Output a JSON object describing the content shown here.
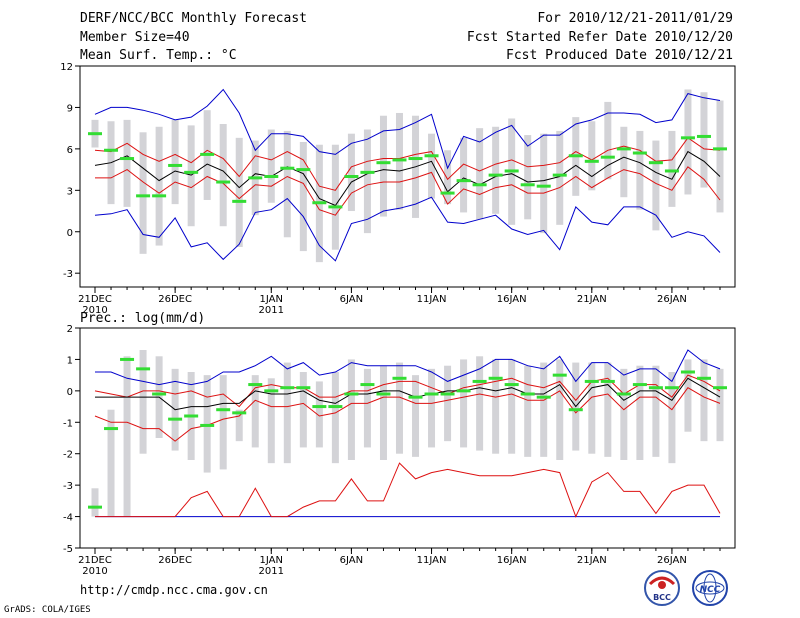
{
  "header": {
    "title": "DERF/NCC/BCC Monthly Forecast",
    "member_size": "Member Size=40",
    "variable": "Mean Surf. Temp.: °C",
    "period": "For 2010/12/21-2011/01/29",
    "refer_date": "Fcst Started Refer Date 2010/12/20",
    "produced_date": "Fcst Produced Date 2010/12/21"
  },
  "footer": {
    "url": "http://cmdp.ncc.cma.gov.cn",
    "grads": "GrADS: COLA/IGES",
    "logo_bcc": "BCC",
    "logo_ncc": "NCC"
  },
  "colors": {
    "spread_bar": "#d3d3d7",
    "max_min": "#0000cc",
    "percentile": "#dd1111",
    "mean": "#000000",
    "observed": "#33dd33",
    "frame": "#000000"
  },
  "chart_data": [
    {
      "type": "line",
      "title": "Mean Surf. Temp.: °C",
      "ylim": [
        -4,
        12
      ],
      "yticks": [
        -3,
        0,
        3,
        6,
        9,
        12
      ],
      "x_ticks": [
        {
          "day": 1,
          "label": "21DEC",
          "sub": "2010"
        },
        {
          "day": 6,
          "label": "26DEC",
          "sub": ""
        },
        {
          "day": 12,
          "label": "1JAN",
          "sub": "2011"
        },
        {
          "day": 17,
          "label": "6JAN",
          "sub": ""
        },
        {
          "day": 22,
          "label": "11JAN",
          "sub": ""
        },
        {
          "day": 27,
          "label": "16JAN",
          "sub": ""
        },
        {
          "day": 32,
          "label": "21JAN",
          "sub": ""
        },
        {
          "day": 37,
          "label": "26JAN",
          "sub": ""
        }
      ],
      "days": 40,
      "series": [
        {
          "name": "bar_top",
          "values": [
            8.1,
            8.0,
            8.1,
            7.2,
            7.6,
            8.1,
            7.7,
            8.8,
            7.8,
            6.8,
            6.6,
            7.4,
            7.3,
            6.5,
            6.3,
            6.3,
            7.1,
            7.4,
            8.4,
            8.6,
            8.4,
            7.1,
            5.9,
            6.8,
            7.5,
            7.6,
            8.2,
            7.0,
            7.1,
            7.3,
            8.3,
            8.0,
            9.4,
            7.6,
            7.3,
            6.6,
            7.3,
            10.3,
            10.1,
            9.5
          ]
        },
        {
          "name": "bar_bottom",
          "values": [
            6.1,
            2.0,
            1.8,
            -1.6,
            -1.0,
            2.0,
            0.4,
            2.3,
            0.4,
            -1.1,
            1.2,
            2.1,
            -0.4,
            -1.4,
            -2.2,
            -1.3,
            1.5,
            -0.1,
            1.1,
            1.6,
            1.0,
            2.4,
            2.0,
            1.4,
            0.9,
            1.3,
            0.5,
            0.9,
            -0.1,
            0.5,
            2.6,
            3.0,
            3.8,
            2.5,
            1.6,
            0.1,
            1.8,
            2.7,
            3.2,
            1.4
          ]
        },
        {
          "name": "max",
          "values": [
            8.5,
            9.0,
            9.0,
            8.8,
            8.5,
            8.1,
            8.3,
            9.1,
            10.3,
            8.6,
            5.9,
            7.1,
            7.1,
            6.9,
            5.8,
            5.6,
            6.4,
            6.7,
            7.3,
            7.4,
            7.9,
            8.5,
            4.6,
            6.9,
            6.5,
            7.2,
            7.7,
            6.2,
            7.0,
            7.0,
            7.8,
            8.1,
            8.6,
            8.6,
            8.5,
            7.9,
            8.1,
            10.0,
            9.7,
            9.5
          ]
        },
        {
          "name": "p90",
          "values": [
            5.9,
            5.8,
            6.4,
            5.6,
            5.1,
            5.6,
            5.0,
            5.9,
            5.3,
            4.0,
            5.5,
            5.2,
            5.8,
            5.2,
            3.3,
            3.0,
            4.7,
            5.1,
            5.3,
            5.3,
            5.6,
            5.8,
            3.8,
            4.9,
            4.4,
            4.9,
            5.2,
            4.7,
            4.8,
            5.0,
            5.8,
            5.2,
            5.9,
            6.2,
            5.9,
            5.1,
            5.2,
            6.8,
            6.0,
            5.9
          ]
        },
        {
          "name": "mean",
          "values": [
            4.8,
            5.0,
            5.5,
            4.6,
            3.7,
            4.4,
            4.1,
            4.9,
            4.4,
            3.2,
            4.2,
            4.0,
            4.7,
            4.2,
            2.4,
            1.9,
            3.6,
            4.2,
            4.5,
            4.4,
            4.7,
            5.1,
            2.9,
            3.9,
            3.4,
            4.0,
            4.2,
            3.6,
            3.7,
            4.0,
            4.8,
            4.0,
            4.8,
            5.4,
            5.0,
            4.3,
            3.8,
            5.8,
            5.1,
            4.0
          ]
        },
        {
          "name": "p10",
          "values": [
            3.9,
            3.9,
            4.5,
            3.6,
            2.8,
            3.6,
            3.2,
            4.0,
            3.5,
            2.4,
            3.4,
            3.3,
            4.0,
            3.5,
            1.6,
            1.2,
            2.8,
            3.4,
            3.6,
            3.6,
            3.9,
            4.3,
            2.0,
            3.1,
            2.7,
            3.2,
            3.4,
            2.8,
            2.8,
            3.2,
            4.0,
            3.2,
            3.9,
            4.5,
            4.2,
            3.5,
            3.0,
            4.7,
            3.8,
            2.3
          ]
        },
        {
          "name": "min",
          "values": [
            1.2,
            1.3,
            1.6,
            -0.2,
            -0.4,
            1.0,
            -1.1,
            -0.8,
            -2.0,
            -0.9,
            1.4,
            1.6,
            2.4,
            1.1,
            -1.0,
            -2.1,
            0.6,
            0.9,
            1.5,
            1.7,
            2.0,
            2.5,
            0.7,
            0.6,
            0.9,
            1.2,
            0.2,
            -0.2,
            0.1,
            -1.3,
            1.8,
            0.7,
            0.5,
            1.8,
            1.8,
            1.2,
            -0.4,
            0.0,
            -0.3,
            -1.5
          ]
        },
        {
          "name": "observed",
          "values": [
            7.1,
            5.9,
            5.3,
            2.6,
            2.6,
            4.8,
            4.3,
            5.6,
            3.6,
            2.2,
            3.9,
            4.0,
            4.6,
            4.5,
            2.1,
            1.8,
            4.0,
            4.3,
            5.0,
            5.2,
            5.3,
            5.5,
            2.8,
            3.7,
            3.4,
            4.1,
            4.4,
            3.4,
            3.3,
            4.1,
            5.5,
            5.1,
            5.4,
            6.0,
            5.7,
            5.0,
            4.4,
            6.8,
            6.9,
            6.0
          ]
        }
      ]
    },
    {
      "type": "line",
      "title": "Prec.: log(mm/d)",
      "ylim": [
        -5,
        2
      ],
      "yticks": [
        -5,
        -4,
        -3,
        -2,
        -1,
        0,
        1,
        2
      ],
      "x_ticks": [
        {
          "day": 1,
          "label": "21DEC",
          "sub": "2010"
        },
        {
          "day": 6,
          "label": "26DEC",
          "sub": ""
        },
        {
          "day": 12,
          "label": "1JAN",
          "sub": "2011"
        },
        {
          "day": 17,
          "label": "6JAN",
          "sub": ""
        },
        {
          "day": 22,
          "label": "11JAN",
          "sub": ""
        },
        {
          "day": 27,
          "label": "16JAN",
          "sub": ""
        },
        {
          "day": 32,
          "label": "21JAN",
          "sub": ""
        },
        {
          "day": 37,
          "label": "26JAN",
          "sub": ""
        }
      ],
      "days": 40,
      "series": [
        {
          "name": "bar_top",
          "values": [
            -3.1,
            -0.6,
            1.1,
            1.3,
            1.1,
            0.7,
            0.6,
            0.5,
            0.5,
            -0.6,
            0.5,
            0.4,
            0.9,
            0.6,
            0.3,
            0.6,
            1.0,
            0.7,
            0.8,
            0.9,
            0.5,
            0.7,
            0.8,
            1.0,
            1.1,
            1.0,
            1.0,
            0.8,
            0.9,
            1.0,
            0.9,
            0.9,
            0.9,
            0.7,
            0.8,
            0.8,
            0.6,
            1.0,
            1.0,
            0.7
          ]
        },
        {
          "name": "bar_bottom",
          "values": [
            -4.0,
            -4.0,
            -4.0,
            -2.0,
            -1.5,
            -1.9,
            -2.2,
            -2.6,
            -2.5,
            -1.6,
            -1.8,
            -2.3,
            -2.3,
            -1.8,
            -1.8,
            -2.3,
            -2.2,
            -1.8,
            -2.2,
            -2.0,
            -2.1,
            -1.8,
            -1.6,
            -1.8,
            -1.9,
            -2.0,
            -2.0,
            -2.1,
            -2.1,
            -2.2,
            -1.9,
            -2.0,
            -2.1,
            -2.2,
            -2.2,
            -2.1,
            -2.3,
            -1.3,
            -1.6,
            -1.6
          ]
        },
        {
          "name": "max",
          "values": [
            0.6,
            0.6,
            0.4,
            0.3,
            0.2,
            0.3,
            0.2,
            0.3,
            0.6,
            0.6,
            0.8,
            1.1,
            0.7,
            0.9,
            0.5,
            0.6,
            0.9,
            0.8,
            0.8,
            0.8,
            0.8,
            0.6,
            0.3,
            0.5,
            0.7,
            1.0,
            1.0,
            0.8,
            0.7,
            1.1,
            0.3,
            0.9,
            0.9,
            0.5,
            0.7,
            0.7,
            0.3,
            1.3,
            0.9,
            0.7
          ]
        },
        {
          "name": "p90",
          "values": [
            0.0,
            -0.1,
            -0.2,
            0.0,
            0.0,
            -0.1,
            0.0,
            -0.2,
            -0.1,
            -0.5,
            0.1,
            0.2,
            0.1,
            0.1,
            -0.2,
            -0.2,
            0.0,
            0.0,
            0.2,
            0.3,
            0.3,
            0.1,
            -0.1,
            0.1,
            0.2,
            0.3,
            0.4,
            0.2,
            0.1,
            0.3,
            -0.3,
            0.3,
            0.4,
            -0.1,
            0.2,
            0.2,
            -0.2,
            0.5,
            0.3,
            0.0
          ]
        },
        {
          "name": "mean",
          "values": [
            -0.2,
            -0.2,
            -0.2,
            -0.2,
            -0.2,
            -0.6,
            -0.5,
            -0.5,
            -0.4,
            -0.4,
            0.0,
            -0.1,
            -0.1,
            0.0,
            -0.3,
            -0.4,
            -0.1,
            -0.1,
            0.0,
            0.0,
            -0.2,
            -0.1,
            0.0,
            0.0,
            0.1,
            0.0,
            0.1,
            -0.1,
            -0.1,
            0.2,
            -0.5,
            0.1,
            0.2,
            -0.3,
            0.0,
            0.0,
            -0.3,
            0.4,
            0.1,
            -0.2
          ]
        },
        {
          "name": "p10",
          "values": [
            -0.8,
            -1.0,
            -1.0,
            -1.2,
            -1.2,
            -1.6,
            -1.2,
            -1.1,
            -0.9,
            -0.8,
            -0.3,
            -0.5,
            -0.5,
            -0.4,
            -0.8,
            -0.7,
            -0.4,
            -0.4,
            -0.2,
            -0.2,
            -0.4,
            -0.4,
            -0.3,
            -0.2,
            -0.1,
            -0.2,
            -0.1,
            -0.3,
            -0.3,
            0.0,
            -0.7,
            -0.2,
            -0.1,
            -0.6,
            -0.2,
            -0.2,
            -0.6,
            0.1,
            -0.2,
            -0.4
          ]
        },
        {
          "name": "p_low",
          "values": [
            -4.0,
            -4.0,
            -4.0,
            -4.0,
            -4.0,
            -4.0,
            -3.4,
            -3.2,
            -4.0,
            -4.0,
            -3.1,
            -4.0,
            -4.0,
            -3.7,
            -3.5,
            -3.5,
            -2.8,
            -3.5,
            -3.5,
            -2.3,
            -2.8,
            -2.6,
            -2.5,
            -2.6,
            -2.7,
            -2.7,
            -2.7,
            -2.6,
            -2.5,
            -2.6,
            -4.0,
            -2.9,
            -2.6,
            -3.2,
            -3.2,
            -3.9,
            -3.2,
            -3.0,
            -3.0,
            -3.9
          ]
        },
        {
          "name": "min",
          "values": [
            -4.0,
            -4.0,
            -4.0,
            -4.0,
            -4.0,
            -4.0,
            -4.0,
            -4.0,
            -4.0,
            -4.0,
            -4.0,
            -4.0,
            -4.0,
            -4.0,
            -4.0,
            -4.0,
            -4.0,
            -4.0,
            -4.0,
            -4.0,
            -4.0,
            -4.0,
            -4.0,
            -4.0,
            -4.0,
            -4.0,
            -4.0,
            -4.0,
            -4.0,
            -4.0,
            -4.0,
            -4.0,
            -4.0,
            -4.0,
            -4.0,
            -4.0,
            -4.0,
            -4.0,
            -4.0,
            -4.0
          ]
        },
        {
          "name": "observed",
          "values": [
            -3.7,
            -1.2,
            1.0,
            0.7,
            -0.1,
            -0.9,
            -0.8,
            -1.1,
            -0.6,
            -0.7,
            0.2,
            0.0,
            0.1,
            0.1,
            -0.5,
            -0.5,
            -0.1,
            0.2,
            -0.1,
            0.4,
            -0.2,
            -0.1,
            -0.1,
            0.0,
            0.3,
            0.4,
            0.2,
            -0.1,
            -0.2,
            0.5,
            -0.6,
            0.3,
            0.3,
            -0.1,
            0.2,
            0.1,
            0.1,
            0.6,
            0.4,
            0.1
          ]
        }
      ]
    }
  ]
}
